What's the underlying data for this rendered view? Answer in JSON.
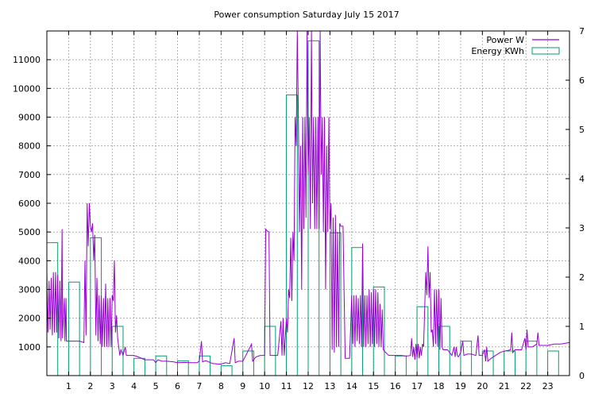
{
  "chart_data": {
    "type": "line",
    "title": "Power consumption Saturday July 15 2017",
    "x_range": [
      0,
      24
    ],
    "x_ticks": [
      1,
      2,
      3,
      4,
      5,
      6,
      7,
      8,
      9,
      10,
      11,
      12,
      13,
      14,
      15,
      16,
      17,
      18,
      19,
      20,
      21,
      22,
      23
    ],
    "y_left_range": [
      0,
      12000
    ],
    "y_left_ticks": [
      1000,
      2000,
      3000,
      4000,
      5000,
      6000,
      7000,
      8000,
      9000,
      10000,
      11000
    ],
    "y_right_range": [
      0,
      7
    ],
    "y_right_ticks": [
      0,
      1,
      2,
      3,
      4,
      5,
      6,
      7
    ],
    "grid": true,
    "legend_position": "top-right",
    "colors": {
      "power": "#9400d3",
      "energy": "#009e73"
    },
    "series": [
      {
        "name": "Power W",
        "axis": "left",
        "style": "line",
        "points": [
          [
            0.0,
            3600
          ],
          [
            0.05,
            1500
          ],
          [
            0.1,
            3300
          ],
          [
            0.15,
            1600
          ],
          [
            0.2,
            3400
          ],
          [
            0.25,
            1400
          ],
          [
            0.3,
            3600
          ],
          [
            0.35,
            1500
          ],
          [
            0.4,
            3600
          ],
          [
            0.45,
            1500
          ],
          [
            0.5,
            3500
          ],
          [
            0.55,
            1300
          ],
          [
            0.6,
            3300
          ],
          [
            0.65,
            1200
          ],
          [
            0.7,
            5100
          ],
          [
            0.72,
            1300
          ],
          [
            0.8,
            2700
          ],
          [
            0.83,
            1200
          ],
          [
            0.88,
            2700
          ],
          [
            0.9,
            1200
          ],
          [
            1.0,
            1200
          ],
          [
            1.3,
            1200
          ],
          [
            1.5,
            1200
          ],
          [
            1.7,
            1150
          ],
          [
            1.75,
            4000
          ],
          [
            1.8,
            1400
          ],
          [
            1.85,
            6000
          ],
          [
            1.9,
            4500
          ],
          [
            1.95,
            6000
          ],
          [
            2.0,
            5200
          ],
          [
            2.05,
            5000
          ],
          [
            2.1,
            5300
          ],
          [
            2.15,
            4000
          ],
          [
            2.2,
            4900
          ],
          [
            2.25,
            1400
          ],
          [
            2.3,
            3400
          ],
          [
            2.35,
            1200
          ],
          [
            2.4,
            2800
          ],
          [
            2.45,
            1100
          ],
          [
            2.5,
            2800
          ],
          [
            2.55,
            1000
          ],
          [
            2.6,
            2700
          ],
          [
            2.65,
            1000
          ],
          [
            2.7,
            3200
          ],
          [
            2.75,
            1000
          ],
          [
            2.8,
            2700
          ],
          [
            2.85,
            1000
          ],
          [
            2.9,
            2700
          ],
          [
            2.95,
            1000
          ],
          [
            3.0,
            2800
          ],
          [
            3.05,
            2600
          ],
          [
            3.1,
            4000
          ],
          [
            3.15,
            1500
          ],
          [
            3.2,
            2100
          ],
          [
            3.25,
            1300
          ],
          [
            3.3,
            1000
          ],
          [
            3.35,
            700
          ],
          [
            3.4,
            900
          ],
          [
            3.5,
            700
          ],
          [
            3.6,
            1000
          ],
          [
            3.65,
            700
          ],
          [
            3.8,
            700
          ],
          [
            4.0,
            700
          ],
          [
            4.2,
            650
          ],
          [
            4.5,
            550
          ],
          [
            4.9,
            550
          ],
          [
            5.0,
            450
          ],
          [
            5.1,
            550
          ],
          [
            5.3,
            500
          ],
          [
            5.5,
            500
          ],
          [
            5.8,
            480
          ],
          [
            6.0,
            450
          ],
          [
            6.3,
            460
          ],
          [
            6.6,
            450
          ],
          [
            6.9,
            450
          ],
          [
            7.0,
            500
          ],
          [
            7.1,
            1200
          ],
          [
            7.15,
            480
          ],
          [
            7.3,
            520
          ],
          [
            7.6,
            420
          ],
          [
            7.9,
            400
          ],
          [
            8.0,
            400
          ],
          [
            8.2,
            450
          ],
          [
            8.4,
            420
          ],
          [
            8.6,
            1300
          ],
          [
            8.65,
            450
          ],
          [
            8.8,
            500
          ],
          [
            9.0,
            500
          ],
          [
            9.4,
            1100
          ],
          [
            9.45,
            500
          ],
          [
            9.6,
            650
          ],
          [
            9.8,
            700
          ],
          [
            10.0,
            700
          ],
          [
            10.05,
            5100
          ],
          [
            10.1,
            5050
          ],
          [
            10.2,
            5000
          ],
          [
            10.25,
            700
          ],
          [
            10.4,
            700
          ],
          [
            10.6,
            700
          ],
          [
            10.75,
            1900
          ],
          [
            10.8,
            700
          ],
          [
            10.85,
            2000
          ],
          [
            10.9,
            700
          ],
          [
            11.0,
            2000
          ],
          [
            11.05,
            1500
          ],
          [
            11.1,
            3000
          ],
          [
            11.15,
            2700
          ],
          [
            11.2,
            4800
          ],
          [
            11.25,
            2600
          ],
          [
            11.3,
            5000
          ],
          [
            11.35,
            4000
          ],
          [
            11.4,
            9000
          ],
          [
            11.45,
            8000
          ],
          [
            11.5,
            12000
          ],
          [
            11.55,
            9000
          ],
          [
            11.6,
            5000
          ],
          [
            11.65,
            8000
          ],
          [
            11.7,
            3000
          ],
          [
            11.75,
            9000
          ],
          [
            11.8,
            5100
          ],
          [
            11.85,
            9000
          ],
          [
            11.9,
            5500
          ],
          [
            11.95,
            12000
          ],
          [
            12.0,
            7000
          ],
          [
            12.05,
            9000
          ],
          [
            12.1,
            5100
          ],
          [
            12.15,
            12000
          ],
          [
            12.2,
            6000
          ],
          [
            12.25,
            9000
          ],
          [
            12.3,
            5100
          ],
          [
            12.35,
            9000
          ],
          [
            12.4,
            5100
          ],
          [
            12.45,
            9000
          ],
          [
            12.5,
            5100
          ],
          [
            12.55,
            12000
          ],
          [
            12.6,
            7000
          ],
          [
            12.65,
            9000
          ],
          [
            12.7,
            5000
          ],
          [
            12.75,
            9000
          ],
          [
            12.8,
            3000
          ],
          [
            12.85,
            8000
          ],
          [
            12.9,
            5000
          ],
          [
            12.95,
            9000
          ],
          [
            13.0,
            5100
          ],
          [
            13.05,
            6000
          ],
          [
            13.1,
            900
          ],
          [
            13.15,
            5500
          ],
          [
            13.2,
            800
          ],
          [
            13.25,
            5600
          ],
          [
            13.3,
            1000
          ],
          [
            13.35,
            5000
          ],
          [
            13.4,
            1000
          ],
          [
            13.45,
            5300
          ],
          [
            13.5,
            5200
          ],
          [
            13.6,
            5200
          ],
          [
            13.7,
            600
          ],
          [
            13.9,
            600
          ],
          [
            14.0,
            2800
          ],
          [
            14.05,
            1100
          ],
          [
            14.1,
            2800
          ],
          [
            14.15,
            1000
          ],
          [
            14.2,
            2800
          ],
          [
            14.25,
            1200
          ],
          [
            14.3,
            2700
          ],
          [
            14.35,
            1100
          ],
          [
            14.4,
            2800
          ],
          [
            14.45,
            1000
          ],
          [
            14.5,
            4600
          ],
          [
            14.55,
            1000
          ],
          [
            14.6,
            2800
          ],
          [
            14.65,
            1000
          ],
          [
            14.7,
            2800
          ],
          [
            14.75,
            1100
          ],
          [
            14.8,
            3000
          ],
          [
            14.85,
            1000
          ],
          [
            14.9,
            2900
          ],
          [
            14.95,
            1100
          ],
          [
            15.0,
            3000
          ],
          [
            15.05,
            1000
          ],
          [
            15.1,
            3000
          ],
          [
            15.15,
            1100
          ],
          [
            15.2,
            2900
          ],
          [
            15.25,
            1000
          ],
          [
            15.3,
            2500
          ],
          [
            15.35,
            1000
          ],
          [
            15.4,
            2300
          ],
          [
            15.45,
            900
          ],
          [
            15.5,
            850
          ],
          [
            15.7,
            700
          ],
          [
            15.9,
            700
          ],
          [
            16.0,
            700
          ],
          [
            16.3,
            700
          ],
          [
            16.5,
            680
          ],
          [
            16.7,
            700
          ],
          [
            16.75,
            1300
          ],
          [
            16.8,
            650
          ],
          [
            16.85,
            1000
          ],
          [
            16.9,
            550
          ],
          [
            16.95,
            1100
          ],
          [
            17.0,
            600
          ],
          [
            17.05,
            1100
          ],
          [
            17.1,
            600
          ],
          [
            17.15,
            1000
          ],
          [
            17.2,
            700
          ],
          [
            17.25,
            1100
          ],
          [
            17.3,
            1000
          ],
          [
            17.4,
            3600
          ],
          [
            17.45,
            2800
          ],
          [
            17.5,
            4500
          ],
          [
            17.55,
            2700
          ],
          [
            17.6,
            3600
          ],
          [
            17.65,
            1500
          ],
          [
            17.7,
            1600
          ],
          [
            17.75,
            1000
          ],
          [
            17.8,
            3000
          ],
          [
            17.85,
            1100
          ],
          [
            17.9,
            3000
          ],
          [
            17.95,
            1000
          ],
          [
            18.0,
            3000
          ],
          [
            18.05,
            900
          ],
          [
            18.1,
            2700
          ],
          [
            18.15,
            1000
          ],
          [
            18.2,
            900
          ],
          [
            18.4,
            900
          ],
          [
            18.6,
            700
          ],
          [
            18.7,
            1000
          ],
          [
            18.75,
            650
          ],
          [
            18.8,
            1000
          ],
          [
            18.85,
            700
          ],
          [
            18.9,
            650
          ],
          [
            19.0,
            800
          ],
          [
            19.1,
            1200
          ],
          [
            19.15,
            700
          ],
          [
            19.3,
            750
          ],
          [
            19.5,
            750
          ],
          [
            19.7,
            700
          ],
          [
            19.8,
            1400
          ],
          [
            19.85,
            700
          ],
          [
            20.0,
            700
          ],
          [
            20.1,
            900
          ],
          [
            20.15,
            500
          ],
          [
            20.2,
            1000
          ],
          [
            20.25,
            500
          ],
          [
            20.4,
            600
          ],
          [
            20.6,
            700
          ],
          [
            20.8,
            800
          ],
          [
            21.0,
            850
          ],
          [
            21.3,
            900
          ],
          [
            21.35,
            1500
          ],
          [
            21.4,
            800
          ],
          [
            21.5,
            900
          ],
          [
            21.8,
            900
          ],
          [
            21.95,
            1300
          ],
          [
            22.0,
            900
          ],
          [
            22.05,
            1600
          ],
          [
            22.1,
            1000
          ],
          [
            22.3,
            1000
          ],
          [
            22.5,
            1100
          ],
          [
            22.55,
            1500
          ],
          [
            22.6,
            1050
          ],
          [
            22.8,
            1050
          ],
          [
            23.0,
            1050
          ],
          [
            23.3,
            1100
          ],
          [
            23.6,
            1100
          ],
          [
            24.0,
            1150
          ]
        ]
      },
      {
        "name": "Energy KWh",
        "axis": "right",
        "style": "steps",
        "values": [
          2.7,
          1.9,
          2.8,
          1.0,
          0.35,
          0.4,
          0.3,
          0.4,
          0.2,
          0.5,
          1.0,
          5.7,
          6.8,
          2.9,
          2.6,
          1.8,
          0.4,
          1.4,
          1.0,
          0.7,
          0.5,
          0.5,
          0.7,
          0.5
        ]
      }
    ]
  }
}
